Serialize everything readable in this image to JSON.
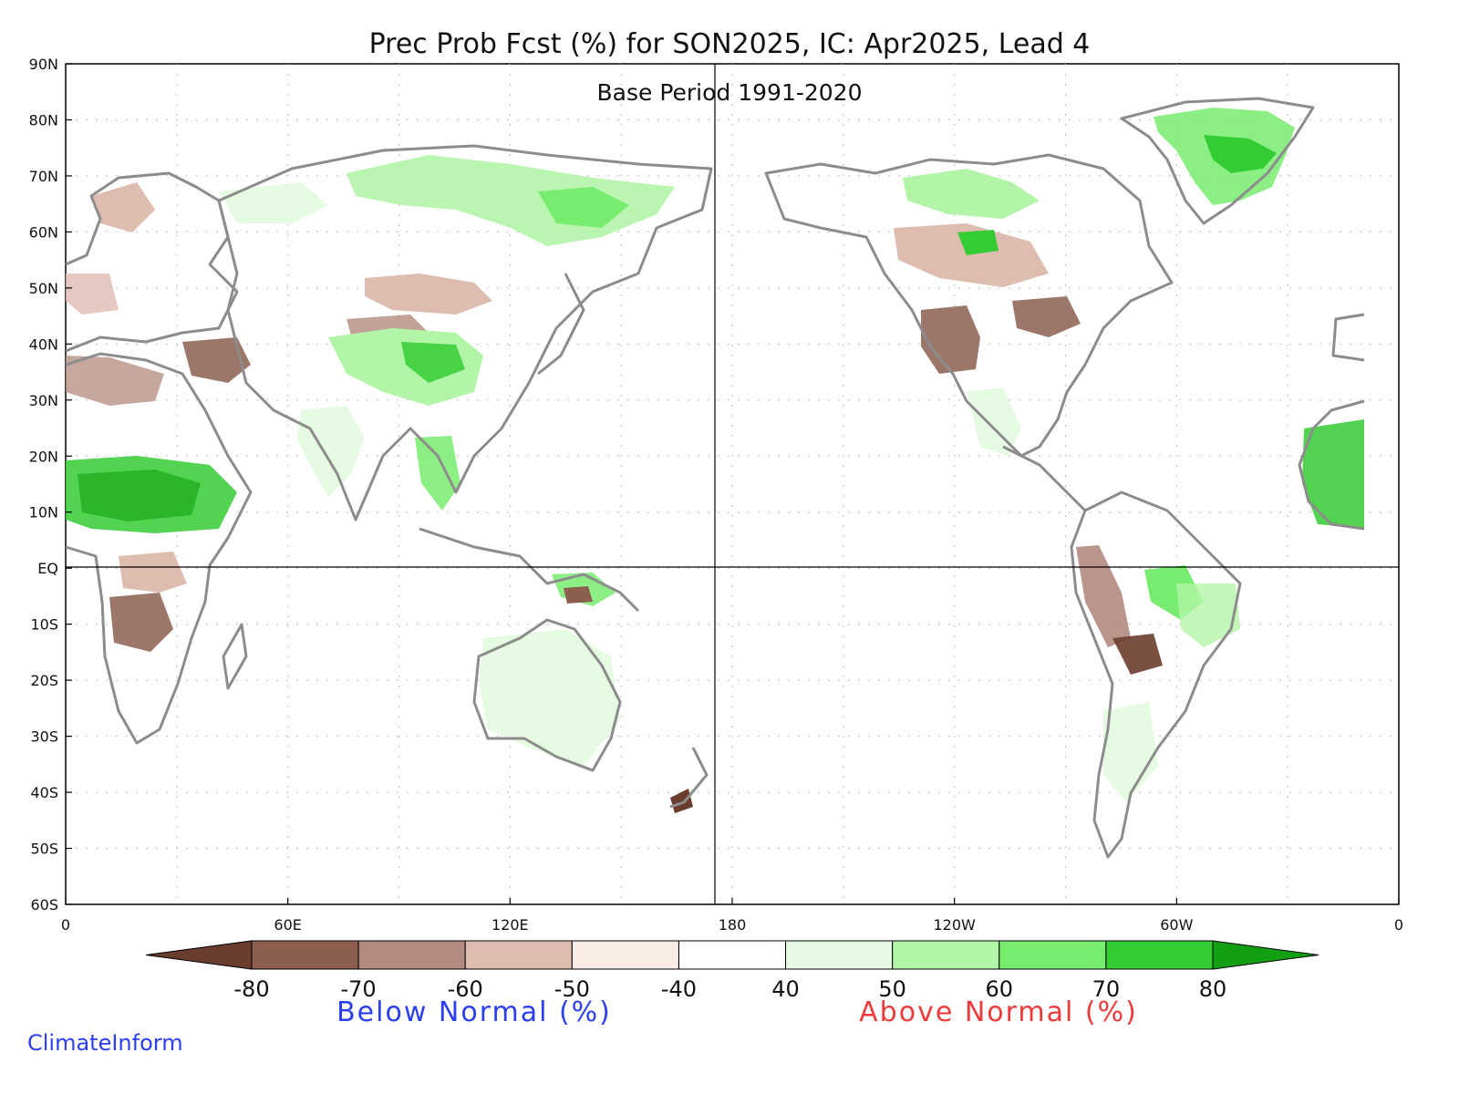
{
  "title": "Prec Prob Fcst (%) for SON2025, IC: Apr2025, Lead 4",
  "subtitle": "Base Period 1991-2020",
  "credit": "ClimateInform",
  "y_ticks": [
    "90N",
    "80N",
    "70N",
    "60N",
    "50N",
    "40N",
    "30N",
    "20N",
    "10N",
    "EQ",
    "10S",
    "20S",
    "30S",
    "40S",
    "50S",
    "60S"
  ],
  "x_ticks": [
    "0",
    "60E",
    "120E",
    "180",
    "120W",
    "60W",
    "0"
  ],
  "colorbar": {
    "labels": [
      "-80",
      "-70",
      "-60",
      "-50",
      "-40",
      "40",
      "50",
      "60",
      "70",
      "80"
    ],
    "colors": [
      "#6b3d2e",
      "#8c5e50",
      "#b28a7e",
      "#dfbcb0",
      "#f8ece4",
      "#ffffff",
      "#e6fce2",
      "#b3f5a8",
      "#78ec6e",
      "#34cc34",
      "#12a012"
    ],
    "below_label": "Below Normal (%)",
    "above_label": "Above Normal (%)"
  },
  "colors": {
    "land_outline": "#8c8c8c",
    "grid": "#bbbbbb",
    "below_strong": "#8c5e50",
    "below_light": "#dfbcb0",
    "above_strong": "#34cc34",
    "above_light": "#b3f5a8"
  }
}
